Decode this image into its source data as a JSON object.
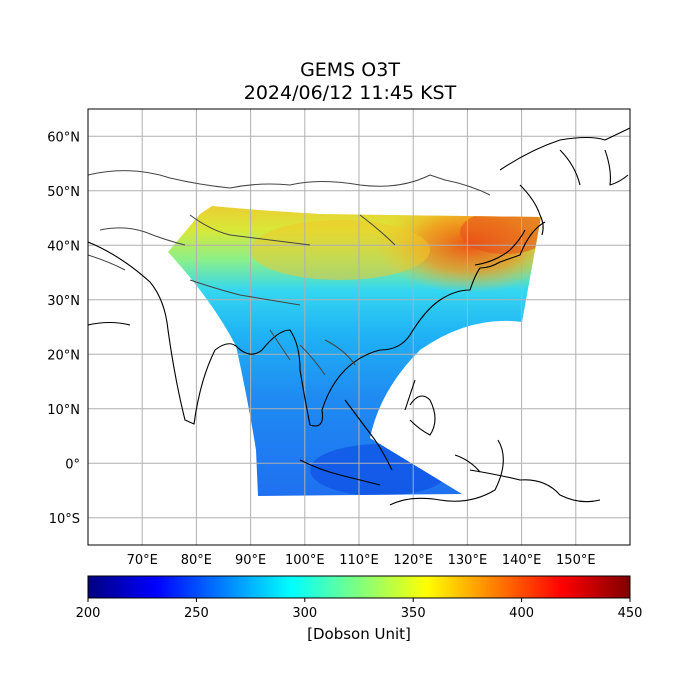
{
  "title": {
    "product": "GEMS O3T",
    "datetime": "2024/06/12 11:45 KST"
  },
  "map": {
    "lon_range": [
      60,
      160
    ],
    "lat_range": [
      -15,
      65
    ],
    "lon_ticks": [
      "70°E",
      "80°E",
      "90°E",
      "100°E",
      "110°E",
      "120°E",
      "130°E",
      "140°E",
      "150°E"
    ],
    "lat_ticks": [
      "60°N",
      "50°N",
      "40°N",
      "30°N",
      "20°N",
      "10°N",
      "0°",
      "10°S"
    ],
    "gridlines": true,
    "gridline_color": "#b0b0b0",
    "coastline_color": "#000000",
    "border_color": "#444444"
  },
  "colorbar": {
    "colormap": "jet",
    "min": 200,
    "max": 450,
    "tick_values": [
      200,
      250,
      300,
      350,
      400,
      450
    ],
    "tick_labels": [
      "200",
      "250",
      "300",
      "350",
      "400",
      "450"
    ],
    "unit": "[Dobson Unit]"
  }
}
